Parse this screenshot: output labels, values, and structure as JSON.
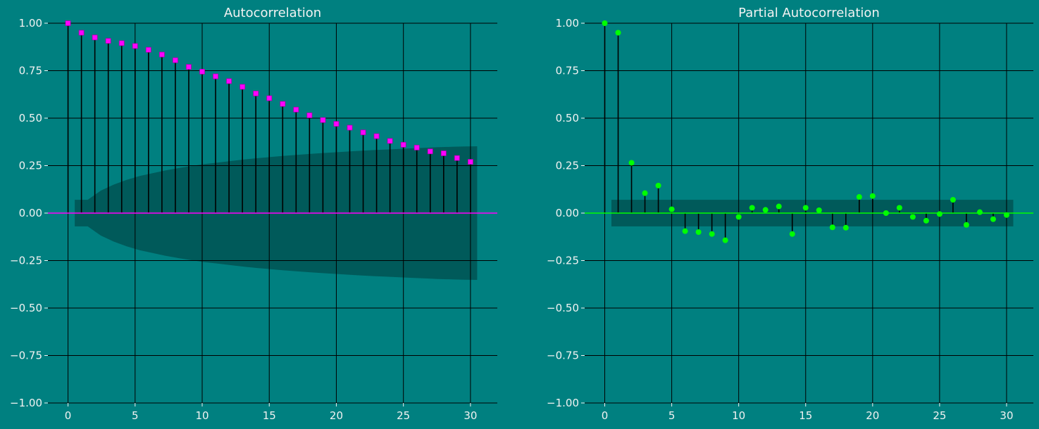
{
  "chart_data": [
    {
      "type": "stem",
      "title": "Autocorrelation",
      "xlabel": "",
      "ylabel": "",
      "xlim": [
        -1.5,
        32
      ],
      "ylim": [
        -1.0,
        1.0
      ],
      "xticks": [
        0,
        5,
        10,
        15,
        20,
        25,
        30
      ],
      "xtick_labels": [
        "0",
        "5",
        "10",
        "15",
        "20",
        "25",
        "30"
      ],
      "yticks": [
        1.0,
        0.75,
        0.5,
        0.25,
        0.0,
        -0.25,
        -0.5,
        -0.75,
        -1.0
      ],
      "ytick_labels": [
        "1.00",
        "0.75",
        "0.50",
        "0.25",
        "0.00",
        "−0.25",
        "−0.50",
        "−0.75",
        "−1.00"
      ],
      "grid": true,
      "marker": "square",
      "marker_color": "#ff00ff",
      "zero_line_color": "#ff00ff",
      "band_color": "#005a5a",
      "lags": [
        0,
        1,
        2,
        3,
        4,
        5,
        6,
        7,
        8,
        9,
        10,
        11,
        12,
        13,
        14,
        15,
        16,
        17,
        18,
        19,
        20,
        21,
        22,
        23,
        24,
        25,
        26,
        27,
        28,
        29,
        30
      ],
      "values": [
        1.0,
        0.95,
        0.925,
        0.907,
        0.895,
        0.88,
        0.86,
        0.835,
        0.805,
        0.77,
        0.745,
        0.72,
        0.695,
        0.665,
        0.63,
        0.605,
        0.575,
        0.545,
        0.515,
        0.49,
        0.47,
        0.45,
        0.425,
        0.405,
        0.38,
        0.36,
        0.345,
        0.325,
        0.315,
        0.29,
        0.27
      ],
      "confidence_band": {
        "x_start": 0.5,
        "x_end": 30.5,
        "upper": [
          0.07,
          0.07,
          0.118,
          0.15,
          0.175,
          0.195,
          0.21,
          0.225,
          0.237,
          0.248,
          0.258,
          0.266,
          0.274,
          0.282,
          0.289,
          0.295,
          0.301,
          0.306,
          0.311,
          0.316,
          0.32,
          0.324,
          0.328,
          0.332,
          0.335,
          0.338,
          0.341,
          0.344,
          0.347,
          0.349,
          0.351,
          0.352
        ]
      }
    },
    {
      "type": "stem",
      "title": "Partial Autocorrelation",
      "xlabel": "",
      "ylabel": "",
      "xlim": [
        -1.5,
        32
      ],
      "ylim": [
        -1.0,
        1.0
      ],
      "xticks": [
        0,
        5,
        10,
        15,
        20,
        25,
        30
      ],
      "xtick_labels": [
        "0",
        "5",
        "10",
        "15",
        "20",
        "25",
        "30"
      ],
      "yticks": [
        1.0,
        0.75,
        0.5,
        0.25,
        0.0,
        -0.25,
        -0.5,
        -0.75,
        -1.0
      ],
      "ytick_labels": [
        "1.00",
        "0.75",
        "0.50",
        "0.25",
        "0.00",
        "−0.25",
        "−0.50",
        "−0.75",
        "−1.00"
      ],
      "grid": true,
      "marker": "circle",
      "marker_color": "#00ff00",
      "zero_line_color": "#00ff00",
      "band_color": "#005a5a",
      "lags": [
        0,
        1,
        2,
        3,
        4,
        5,
        6,
        7,
        8,
        9,
        10,
        11,
        12,
        13,
        14,
        15,
        16,
        17,
        18,
        19,
        20,
        21,
        22,
        23,
        24,
        25,
        26,
        27,
        28,
        29,
        30
      ],
      "values": [
        1.0,
        0.95,
        0.265,
        0.105,
        0.145,
        0.02,
        -0.095,
        -0.1,
        -0.11,
        -0.143,
        -0.02,
        0.028,
        0.017,
        0.035,
        -0.11,
        0.028,
        0.015,
        -0.075,
        -0.077,
        0.085,
        0.09,
        0.0,
        0.028,
        -0.02,
        -0.04,
        -0.005,
        0.07,
        -0.062,
        0.005,
        -0.032,
        -0.01
      ],
      "confidence_band": {
        "x_start": 0.5,
        "x_end": 30.5,
        "upper": [
          0.07,
          0.07
        ]
      }
    }
  ]
}
